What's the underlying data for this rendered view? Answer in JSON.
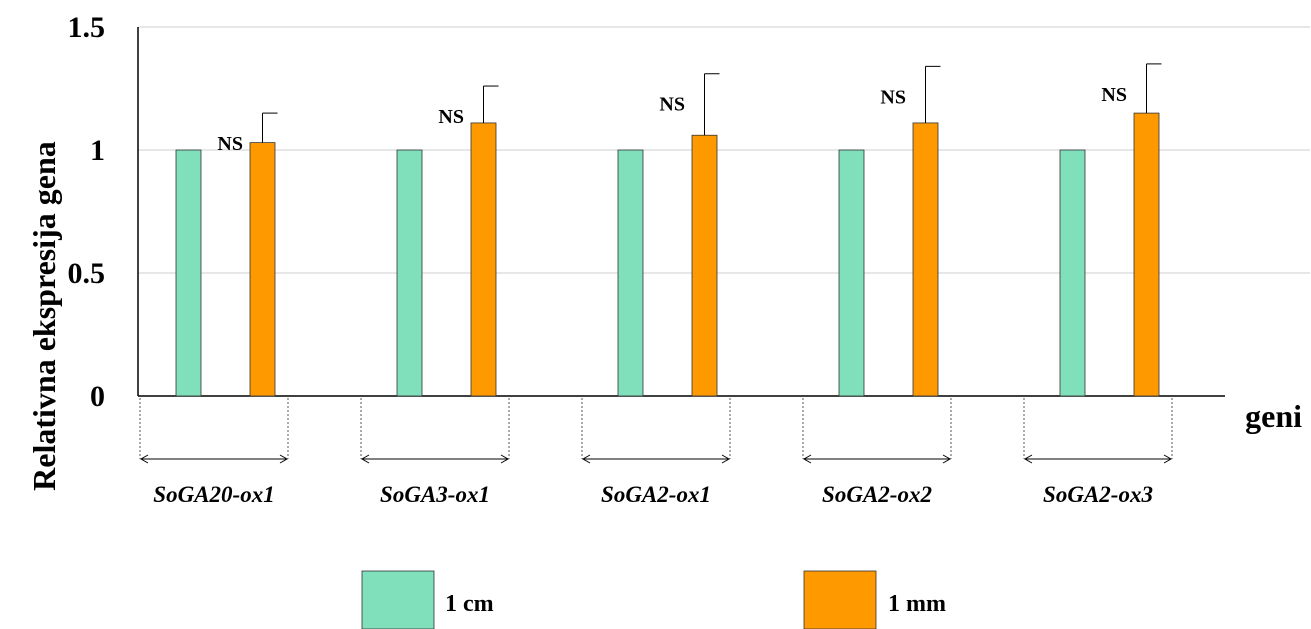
{
  "chart_data": {
    "type": "bar",
    "title": "",
    "xlabel": "geni",
    "ylabel": "Relativna ekspresija gena",
    "ylim": [
      0,
      1.5
    ],
    "yticks": [
      "0",
      "0.5",
      "1",
      "1.5"
    ],
    "grid": true,
    "legend_position": "bottom",
    "categories": [
      "SoGA20-ox1",
      "SoGA3-ox1",
      "SoGA2-ox1",
      "SoGA2-ox2",
      "SoGA2-ox3"
    ],
    "series": [
      {
        "name": "1 cm",
        "color": "#7fe0bb",
        "values": [
          1,
          1,
          1,
          1,
          1
        ]
      },
      {
        "name": "1 mm",
        "color": "#ff9900",
        "values": [
          1.03,
          1.11,
          1.06,
          1.11,
          1.15
        ],
        "error": [
          0.12,
          0.15,
          0.25,
          0.23,
          0.2
        ]
      }
    ],
    "annotations": [
      "NS",
      "NS",
      "NS",
      "NS",
      "NS"
    ]
  }
}
